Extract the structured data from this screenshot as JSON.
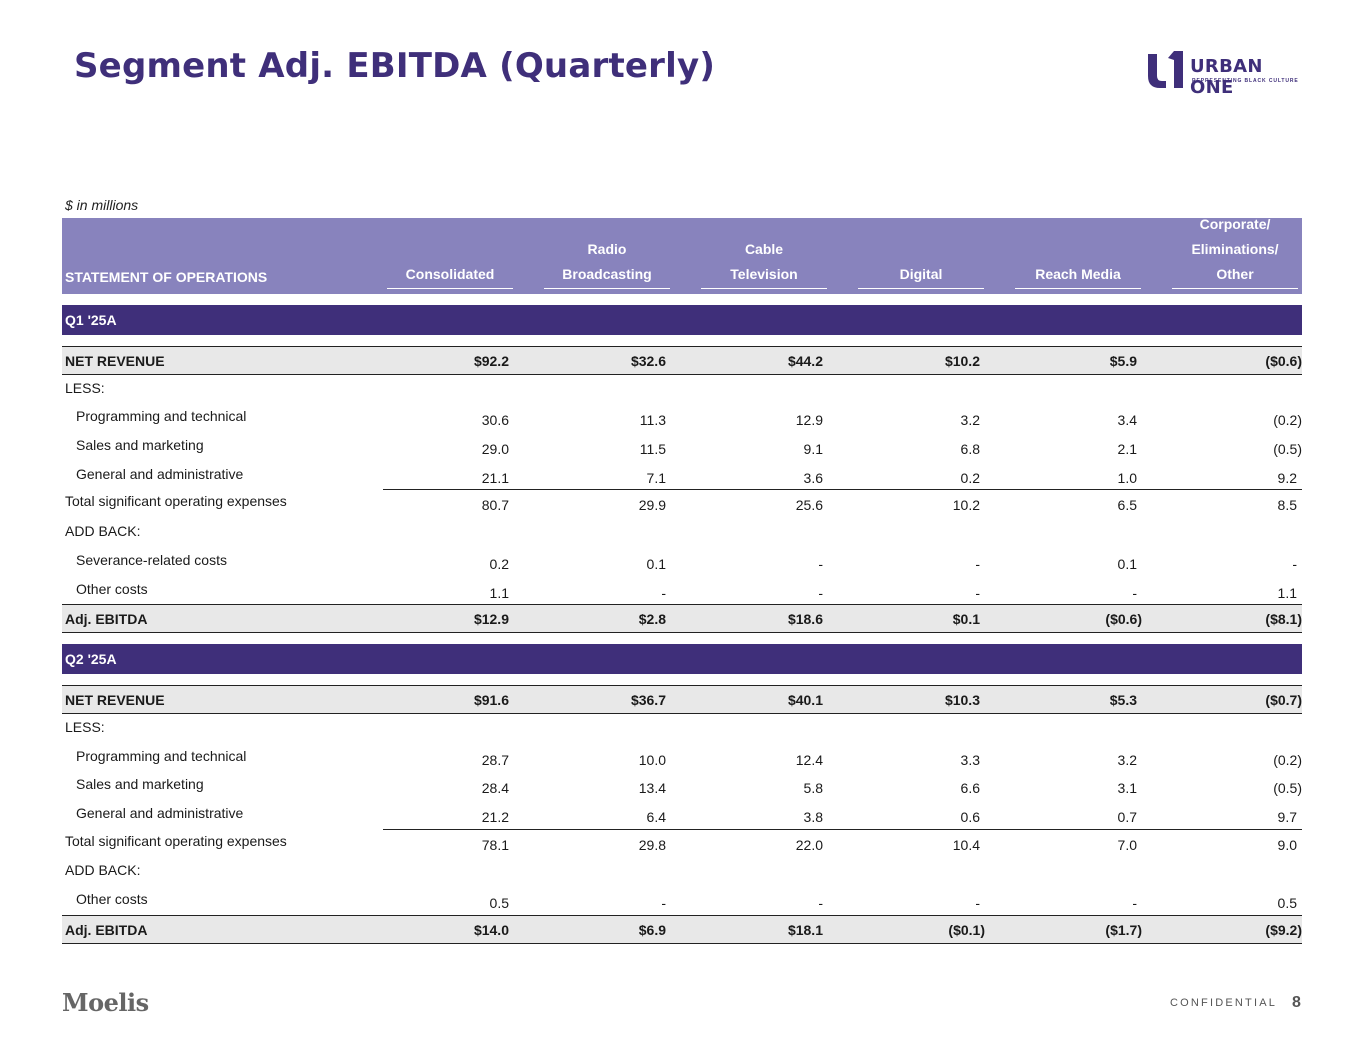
{
  "title": "Segment Adj. EBITDA (Quarterly)",
  "logo": {
    "name": "URBAN ONE",
    "tagline": "REPRESENTING BLACK CULTURE",
    "brand_color": "#3f2f7a"
  },
  "units_note": "$ in millions",
  "header": {
    "label": "STATEMENT OF OPERATIONS",
    "columns": [
      {
        "line1": "",
        "line2": "",
        "line3": "Consolidated"
      },
      {
        "line1": "",
        "line2": "Radio",
        "line3": "Broadcasting"
      },
      {
        "line1": "",
        "line2": "Cable",
        "line3": "Television"
      },
      {
        "line1": "",
        "line2": "",
        "line3": "Digital"
      },
      {
        "line1": "",
        "line2": "",
        "line3": "Reach Media"
      },
      {
        "line1": "Corporate/",
        "line2": "Eliminations/",
        "line3": "Other"
      }
    ]
  },
  "q1": {
    "band": "Q1 '25A",
    "rows": [
      {
        "label": "NET REVENUE",
        "values": [
          "$92.2",
          "$32.6",
          "$44.2",
          "$10.2",
          "$5.9",
          "($0.6)"
        ]
      },
      {
        "label": "LESS:",
        "values": [
          "",
          "",
          "",
          "",
          "",
          ""
        ]
      },
      {
        "label": "Programming and technical",
        "values": [
          "30.6",
          "11.3",
          "12.9",
          "3.2",
          "3.4",
          "(0.2)"
        ]
      },
      {
        "label": "Sales and marketing",
        "values": [
          "29.0",
          "11.5",
          "9.1",
          "6.8",
          "2.1",
          "(0.5)"
        ]
      },
      {
        "label": "General and administrative",
        "values": [
          "21.1",
          "7.1",
          "3.6",
          "0.2",
          "1.0",
          "9.2"
        ]
      },
      {
        "label": "Total significant operating expenses",
        "values": [
          "80.7",
          "29.9",
          "25.6",
          "10.2",
          "6.5",
          "8.5"
        ]
      },
      {
        "label": "ADD BACK:",
        "values": [
          "",
          "",
          "",
          "",
          "",
          ""
        ]
      },
      {
        "label": "Severance-related costs",
        "values": [
          "0.2",
          "0.1",
          "-",
          "-",
          "0.1",
          "-"
        ]
      },
      {
        "label": "Other costs",
        "values": [
          "1.1",
          "-",
          "-",
          "-",
          "-",
          "1.1"
        ]
      },
      {
        "label": "Adj. EBITDA",
        "values": [
          "$12.9",
          "$2.8",
          "$18.6",
          "$0.1",
          "($0.6)",
          "($8.1)"
        ]
      }
    ]
  },
  "q2": {
    "band": "Q2 '25A",
    "rows": [
      {
        "label": "NET REVENUE",
        "values": [
          "$91.6",
          "$36.7",
          "$40.1",
          "$10.3",
          "$5.3",
          "($0.7)"
        ]
      },
      {
        "label": "LESS:",
        "values": [
          "",
          "",
          "",
          "",
          "",
          ""
        ]
      },
      {
        "label": "Programming and technical",
        "values": [
          "28.7",
          "10.0",
          "12.4",
          "3.3",
          "3.2",
          "(0.2)"
        ]
      },
      {
        "label": "Sales and marketing",
        "values": [
          "28.4",
          "13.4",
          "5.8",
          "6.6",
          "3.1",
          "(0.5)"
        ]
      },
      {
        "label": "General and administrative",
        "values": [
          "21.2",
          "6.4",
          "3.8",
          "0.6",
          "0.7",
          "9.7"
        ]
      },
      {
        "label": "Total significant operating expenses",
        "values": [
          "78.1",
          "29.8",
          "22.0",
          "10.4",
          "7.0",
          "9.0"
        ]
      },
      {
        "label": "ADD BACK:",
        "values": [
          "",
          "",
          "",
          "",
          "",
          ""
        ]
      },
      {
        "label": "Other costs",
        "values": [
          "0.5",
          "-",
          "-",
          "-",
          "-",
          "0.5"
        ]
      },
      {
        "label": "Adj. EBITDA",
        "values": [
          "$14.0",
          "$6.9",
          "$18.1",
          "($0.1)",
          "($1.7)",
          "($9.2)"
        ]
      }
    ]
  },
  "footer": {
    "brand": "Moelis",
    "confidential": "CONFIDENTIAL",
    "page": "8"
  }
}
